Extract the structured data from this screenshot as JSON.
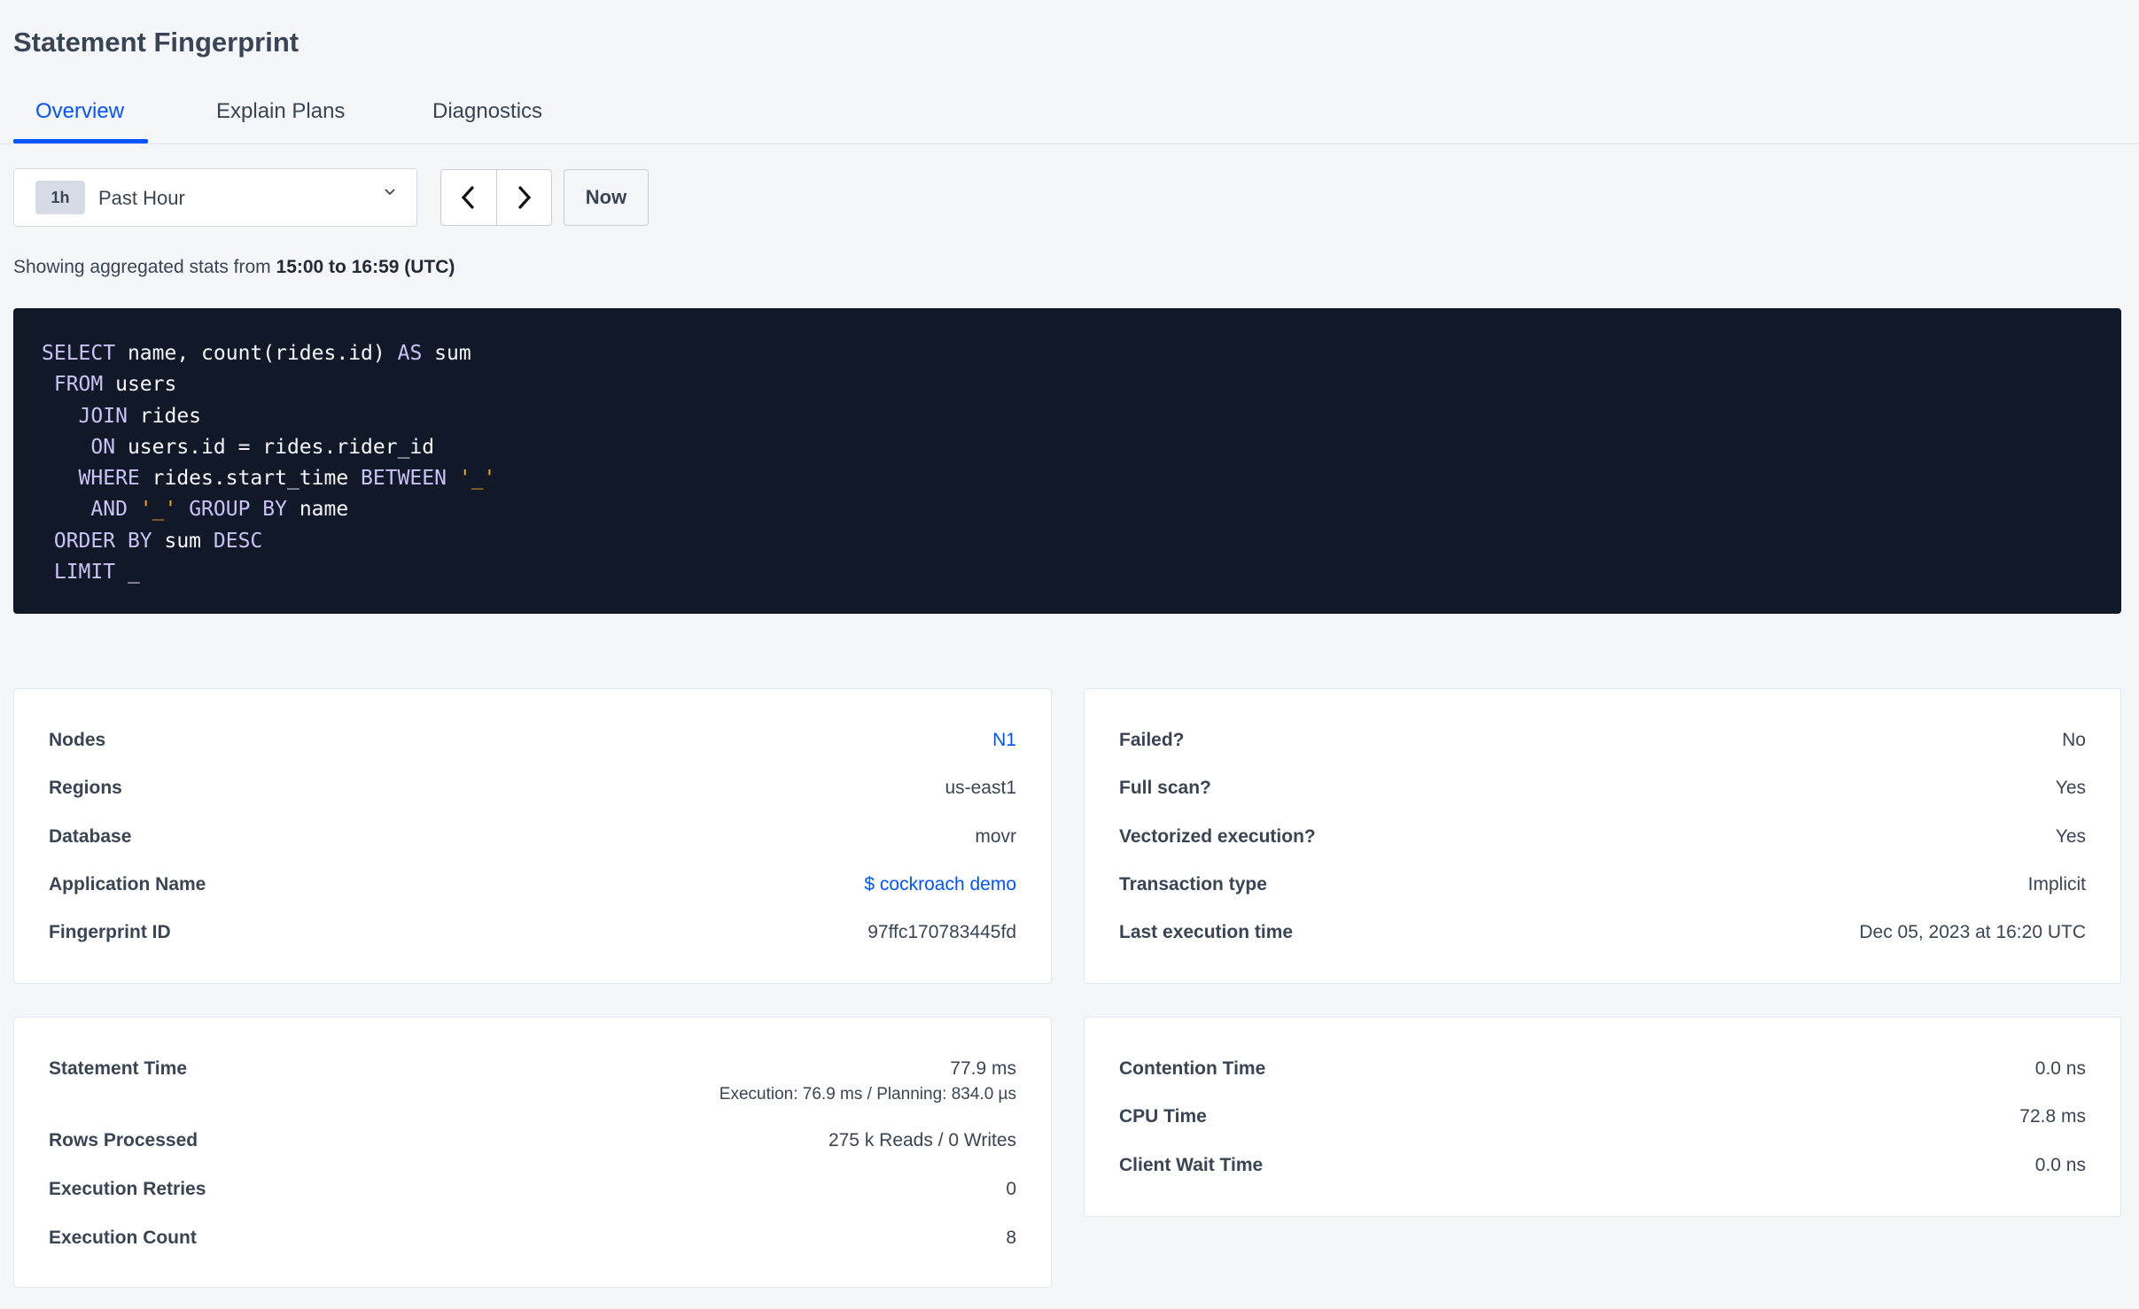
{
  "page": {
    "title": "Statement Fingerprint"
  },
  "tabs": [
    {
      "label": "Overview",
      "active": true
    },
    {
      "label": "Explain Plans"
    },
    {
      "label": "Diagnostics"
    }
  ],
  "time_picker": {
    "badge": "1h",
    "selected": "Past Hour",
    "prev_icon": "chevron-left-icon",
    "next_icon": "chevron-right-icon",
    "now_label": "Now"
  },
  "range": {
    "prefix": "Showing aggregated stats from ",
    "value": "15:00 to 16:59 (UTC)"
  },
  "sql": {
    "lines": [
      [
        {
          "t": "SELECT",
          "k": "kw"
        },
        {
          "t": " name, count(rides.id) "
        },
        {
          "t": "AS",
          "k": "kw"
        },
        {
          "t": " sum"
        }
      ],
      [
        {
          "t": " "
        },
        {
          "t": "FROM",
          "k": "kw"
        },
        {
          "t": " users"
        }
      ],
      [
        {
          "t": "   "
        },
        {
          "t": "JOIN",
          "k": "kw"
        },
        {
          "t": " rides"
        }
      ],
      [
        {
          "t": "    "
        },
        {
          "t": "ON",
          "k": "kw"
        },
        {
          "t": " users.id = rides.rider_id"
        }
      ],
      [
        {
          "t": "   "
        },
        {
          "t": "WHERE",
          "k": "kw"
        },
        {
          "t": " rides.start_time "
        },
        {
          "t": "BETWEEN",
          "k": "kw"
        },
        {
          "t": " "
        },
        {
          "t": "'_'",
          "k": "str"
        }
      ],
      [
        {
          "t": "    "
        },
        {
          "t": "AND",
          "k": "kw"
        },
        {
          "t": " "
        },
        {
          "t": "'_'",
          "k": "str"
        },
        {
          "t": " "
        },
        {
          "t": "GROUP BY",
          "k": "kw"
        },
        {
          "t": " name"
        }
      ],
      [
        {
          "t": " "
        },
        {
          "t": "ORDER BY",
          "k": "kw"
        },
        {
          "t": " sum "
        },
        {
          "t": "DESC",
          "k": "kw"
        }
      ],
      [
        {
          "t": " "
        },
        {
          "t": "LIMIT",
          "k": "kw"
        },
        {
          "t": " _"
        }
      ]
    ]
  },
  "cards": {
    "overview_left": [
      {
        "label": "Nodes",
        "value": "N1",
        "link": true
      },
      {
        "label": "Regions",
        "value": "us-east1"
      },
      {
        "label": "Database",
        "value": "movr"
      },
      {
        "label": "Application Name",
        "value": "$ cockroach demo",
        "link": true
      },
      {
        "label": "Fingerprint ID",
        "value": "97ffc170783445fd"
      }
    ],
    "overview_right": [
      {
        "label": "Failed?",
        "value": "No"
      },
      {
        "label": "Full scan?",
        "value": "Yes"
      },
      {
        "label": "Vectorized execution?",
        "value": "Yes"
      },
      {
        "label": "Transaction type",
        "value": "Implicit"
      },
      {
        "label": "Last execution time",
        "value": "Dec 05, 2023 at 16:20 UTC"
      }
    ],
    "stats_left": [
      {
        "label": "Statement Time",
        "value": "77.9 ms",
        "sub": "Execution: 76.9 ms / Planning: 834.0 µs"
      },
      {
        "label": "Rows Processed",
        "value": "275 k Reads / 0 Writes"
      },
      {
        "label": "Execution Retries",
        "value": "0"
      },
      {
        "label": "Execution Count",
        "value": "8"
      }
    ],
    "stats_right": [
      {
        "label": "Contention Time",
        "value": "0.0 ns"
      },
      {
        "label": "CPU Time",
        "value": "72.8 ms"
      },
      {
        "label": "Client Wait Time",
        "value": "0.0 ns"
      }
    ]
  },
  "colors": {
    "accent": "#0055ff",
    "code_bg": "#111828",
    "keyword": "#c9c3f5",
    "string": "#f5a524"
  }
}
